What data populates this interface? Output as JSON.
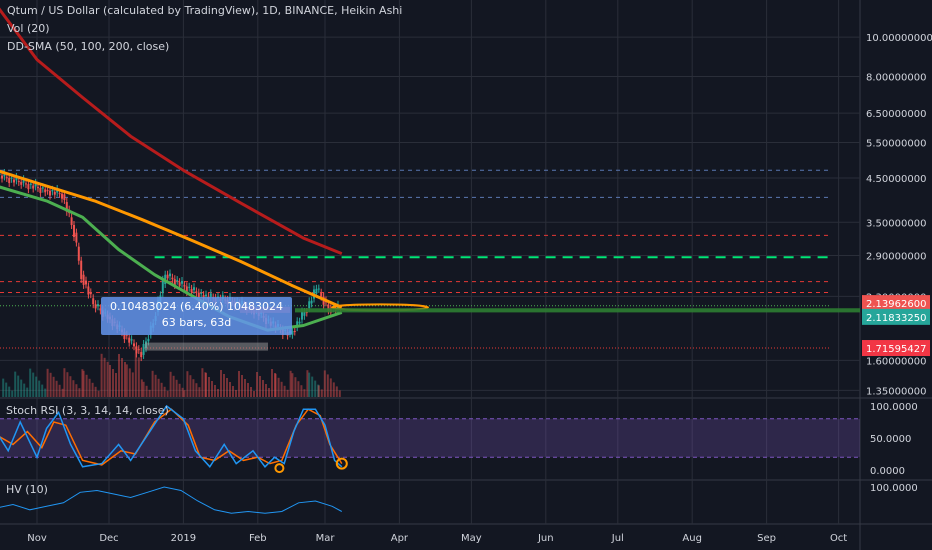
{
  "legend": {
    "title": "Qtum / US Dollar (calculated by TradingView), 1D, BINANCE, Heikin Ashi",
    "vol": "Vol (20)",
    "ddsma": "DD-SMA (50, 100, 200, close)",
    "stoch": "Stoch RSI (3, 3, 14, 14, close)",
    "hv": "HV (10)"
  },
  "measure": {
    "line1": "0.10483024 (6.40%) 10483024",
    "line2": "63 bars, 63d"
  },
  "price_badges": [
    {
      "label": "2.13962600",
      "value": 2.139626,
      "color": "#ef5350"
    },
    {
      "label": "2.11833250",
      "value": 2.1183325,
      "color": "#26a69a"
    },
    {
      "label": "1.71595427",
      "value": 1.71595427,
      "color": "#f23645"
    }
  ],
  "colors": {
    "background": "#131722",
    "grid": "#2a2e39",
    "axis_text": "#d1d4dc",
    "sma50": "#4caf50",
    "sma100": "#ff9800",
    "sma200": "#b71c1c",
    "stoch_k": "#2196f3",
    "stoch_d": "#ff6d00",
    "stoch_band": "#7e57c2",
    "blue_level": "#5b78b3",
    "red_level": "#e53935",
    "green_level": "#00e676"
  },
  "chart_data": {
    "type": "candlestick",
    "price_axis": {
      "scale": "log",
      "ticks": [
        "10.00000000",
        "8.00000000",
        "6.50000000",
        "5.50000000",
        "4.50000000",
        "3.50000000",
        "2.90000000",
        "2.30000000",
        "1.60000000",
        "1.35000000"
      ],
      "tick_values": [
        10,
        8,
        6.5,
        5.5,
        4.5,
        3.5,
        2.9,
        2.3,
        1.6,
        1.35
      ],
      "range": [
        1.3,
        12.2
      ]
    },
    "time_axis": {
      "ticks": [
        "Nov",
        "Dec",
        "2019",
        "Feb",
        "Mar",
        "Apr",
        "May",
        "Jun",
        "Jul",
        "Aug",
        "Sep",
        "Oct"
      ],
      "tick_dates": [
        "2018-11-01",
        "2018-12-01",
        "2019-01-01",
        "2019-02-01",
        "2019-03-01",
        "2019-04-01",
        "2019-05-01",
        "2019-06-01",
        "2019-07-01",
        "2019-08-01",
        "2019-09-01",
        "2019-10-01"
      ]
    },
    "horizontal_levels": [
      {
        "value": 4.7,
        "style": "dashed",
        "color": "blue_level"
      },
      {
        "value": 4.03,
        "style": "dashed",
        "color": "blue_level"
      },
      {
        "value": 3.25,
        "style": "dashed",
        "color": "red_level"
      },
      {
        "value": 2.87,
        "style": "dashed-thick",
        "color": "green_level"
      },
      {
        "value": 2.5,
        "style": "dashed",
        "color": "red_level"
      },
      {
        "value": 2.35,
        "style": "dashed",
        "color": "red_level"
      },
      {
        "value": 2.18,
        "style": "dotted",
        "color": "sma50"
      },
      {
        "value": 1.716,
        "style": "dotted",
        "color": "red_level"
      }
    ],
    "price_series": [
      {
        "date": "2018-10-15",
        "value": 4.6
      },
      {
        "date": "2018-10-25",
        "value": 4.4
      },
      {
        "date": "2018-11-05",
        "value": 4.2
      },
      {
        "date": "2018-11-12",
        "value": 4.1
      },
      {
        "date": "2018-11-17",
        "value": 3.3
      },
      {
        "date": "2018-11-20",
        "value": 2.6
      },
      {
        "date": "2018-11-25",
        "value": 2.2
      },
      {
        "date": "2018-12-01",
        "value": 2.05
      },
      {
        "date": "2018-12-08",
        "value": 1.85
      },
      {
        "date": "2018-12-15",
        "value": 1.65
      },
      {
        "date": "2018-12-20",
        "value": 2.0
      },
      {
        "date": "2018-12-25",
        "value": 2.6
      },
      {
        "date": "2019-01-01",
        "value": 2.45
      },
      {
        "date": "2019-01-10",
        "value": 2.3
      },
      {
        "date": "2019-01-20",
        "value": 2.25
      },
      {
        "date": "2019-01-30",
        "value": 2.15
      },
      {
        "date": "2019-02-08",
        "value": 1.95
      },
      {
        "date": "2019-02-15",
        "value": 1.85
      },
      {
        "date": "2019-02-22",
        "value": 2.15
      },
      {
        "date": "2019-02-26",
        "value": 2.4
      },
      {
        "date": "2019-03-03",
        "value": 2.15
      },
      {
        "date": "2019-03-08",
        "value": 2.14
      }
    ],
    "series": [
      {
        "key": "sma50",
        "values": [
          {
            "date": "2018-10-15",
            "value": 4.3
          },
          {
            "date": "2018-11-05",
            "value": 3.95
          },
          {
            "date": "2018-11-20",
            "value": 3.6
          },
          {
            "date": "2018-12-05",
            "value": 3.0
          },
          {
            "date": "2018-12-20",
            "value": 2.6
          },
          {
            "date": "2019-01-05",
            "value": 2.3
          },
          {
            "date": "2019-01-20",
            "value": 2.05
          },
          {
            "date": "2019-02-05",
            "value": 1.9
          },
          {
            "date": "2019-02-20",
            "value": 1.95
          },
          {
            "date": "2019-03-08",
            "value": 2.1
          }
        ]
      },
      {
        "key": "sma100",
        "values": [
          {
            "date": "2018-10-15",
            "value": 4.7
          },
          {
            "date": "2018-11-05",
            "value": 4.3
          },
          {
            "date": "2018-11-25",
            "value": 3.95
          },
          {
            "date": "2018-12-15",
            "value": 3.55
          },
          {
            "date": "2019-01-05",
            "value": 3.15
          },
          {
            "date": "2019-01-25",
            "value": 2.8
          },
          {
            "date": "2019-02-15",
            "value": 2.45
          },
          {
            "date": "2019-03-08",
            "value": 2.16
          }
        ]
      },
      {
        "key": "sma200",
        "values": [
          {
            "date": "2018-10-15",
            "value": 12.0
          },
          {
            "date": "2018-11-01",
            "value": 8.8
          },
          {
            "date": "2018-11-20",
            "value": 7.1
          },
          {
            "date": "2018-12-10",
            "value": 5.7
          },
          {
            "date": "2019-01-01",
            "value": 4.7
          },
          {
            "date": "2019-01-25",
            "value": 3.9
          },
          {
            "date": "2019-02-20",
            "value": 3.2
          },
          {
            "date": "2019-03-08",
            "value": 2.93
          }
        ]
      }
    ],
    "stoch_axis": {
      "ticks": [
        "100.0000",
        "50.0000",
        "0.0000"
      ],
      "tick_values": [
        100,
        50,
        0
      ],
      "band": [
        20,
        80
      ]
    },
    "stoch_k": [
      {
        "date": "2018-10-15",
        "value": 60
      },
      {
        "date": "2018-10-20",
        "value": 30
      },
      {
        "date": "2018-10-25",
        "value": 75
      },
      {
        "date": "2018-11-01",
        "value": 20
      },
      {
        "date": "2018-11-05",
        "value": 65
      },
      {
        "date": "2018-11-10",
        "value": 90
      },
      {
        "date": "2018-11-15",
        "value": 40
      },
      {
        "date": "2018-11-20",
        "value": 5
      },
      {
        "date": "2018-11-28",
        "value": 10
      },
      {
        "date": "2018-12-05",
        "value": 40
      },
      {
        "date": "2018-12-10",
        "value": 15
      },
      {
        "date": "2018-12-18",
        "value": 60
      },
      {
        "date": "2018-12-25",
        "value": 100
      },
      {
        "date": "2019-01-01",
        "value": 80
      },
      {
        "date": "2019-01-06",
        "value": 30
      },
      {
        "date": "2019-01-12",
        "value": 5
      },
      {
        "date": "2019-01-18",
        "value": 40
      },
      {
        "date": "2019-01-23",
        "value": 10
      },
      {
        "date": "2019-01-30",
        "value": 30
      },
      {
        "date": "2019-02-04",
        "value": 5
      },
      {
        "date": "2019-02-08",
        "value": 20
      },
      {
        "date": "2019-02-12",
        "value": 10
      },
      {
        "date": "2019-02-16",
        "value": 60
      },
      {
        "date": "2019-02-20",
        "value": 95
      },
      {
        "date": "2019-02-25",
        "value": 95
      },
      {
        "date": "2019-03-01",
        "value": 70
      },
      {
        "date": "2019-03-05",
        "value": 15
      },
      {
        "date": "2019-03-08",
        "value": 5
      }
    ],
    "stoch_d": [
      {
        "date": "2018-10-15",
        "value": 55
      },
      {
        "date": "2018-10-22",
        "value": 40
      },
      {
        "date": "2018-10-28",
        "value": 60
      },
      {
        "date": "2018-11-03",
        "value": 35
      },
      {
        "date": "2018-11-08",
        "value": 75
      },
      {
        "date": "2018-11-13",
        "value": 70
      },
      {
        "date": "2018-11-20",
        "value": 15
      },
      {
        "date": "2018-11-28",
        "value": 8
      },
      {
        "date": "2018-12-06",
        "value": 30
      },
      {
        "date": "2018-12-12",
        "value": 25
      },
      {
        "date": "2018-12-20",
        "value": 75
      },
      {
        "date": "2018-12-27",
        "value": 95
      },
      {
        "date": "2019-01-03",
        "value": 70
      },
      {
        "date": "2019-01-08",
        "value": 20
      },
      {
        "date": "2019-01-14",
        "value": 15
      },
      {
        "date": "2019-01-20",
        "value": 30
      },
      {
        "date": "2019-01-26",
        "value": 15
      },
      {
        "date": "2019-02-01",
        "value": 20
      },
      {
        "date": "2019-02-06",
        "value": 10
      },
      {
        "date": "2019-02-11",
        "value": 15
      },
      {
        "date": "2019-02-17",
        "value": 70
      },
      {
        "date": "2019-02-22",
        "value": 95
      },
      {
        "date": "2019-02-27",
        "value": 85
      },
      {
        "date": "2019-03-03",
        "value": 40
      },
      {
        "date": "2019-03-08",
        "value": 10
      }
    ],
    "hv_axis": {
      "ticks": [
        "100.0000"
      ],
      "tick_values": [
        100
      ],
      "range": [
        0,
        120
      ]
    },
    "hv": [
      {
        "date": "2018-10-15",
        "value": 40
      },
      {
        "date": "2018-10-22",
        "value": 50
      },
      {
        "date": "2018-10-29",
        "value": 35
      },
      {
        "date": "2018-11-05",
        "value": 45
      },
      {
        "date": "2018-11-12",
        "value": 55
      },
      {
        "date": "2018-11-19",
        "value": 85
      },
      {
        "date": "2018-11-26",
        "value": 90
      },
      {
        "date": "2018-12-03",
        "value": 80
      },
      {
        "date": "2018-12-10",
        "value": 70
      },
      {
        "date": "2018-12-17",
        "value": 85
      },
      {
        "date": "2018-12-24",
        "value": 100
      },
      {
        "date": "2018-12-31",
        "value": 90
      },
      {
        "date": "2019-01-07",
        "value": 60
      },
      {
        "date": "2019-01-14",
        "value": 35
      },
      {
        "date": "2019-01-21",
        "value": 25
      },
      {
        "date": "2019-01-28",
        "value": 30
      },
      {
        "date": "2019-02-04",
        "value": 25
      },
      {
        "date": "2019-02-11",
        "value": 30
      },
      {
        "date": "2019-02-18",
        "value": 55
      },
      {
        "date": "2019-02-25",
        "value": 60
      },
      {
        "date": "2019-03-04",
        "value": 45
      },
      {
        "date": "2019-03-08",
        "value": 30
      }
    ]
  }
}
